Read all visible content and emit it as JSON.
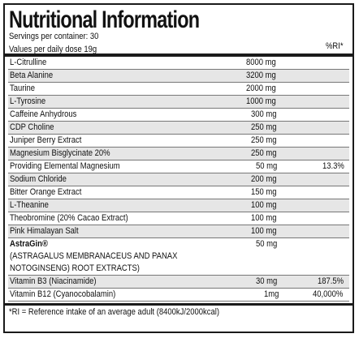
{
  "title": "Nutritional Information",
  "servings": "Servings per container: 30",
  "values_per": "Values per daily dose 19g",
  "ri_header": "%RI*",
  "rows": [
    {
      "name": "L-Citrulline",
      "amount": "8000 mg",
      "ri": ""
    },
    {
      "name": "Beta Alanine",
      "amount": "3200 mg",
      "ri": ""
    },
    {
      "name": "Taurine",
      "amount": "2000 mg",
      "ri": ""
    },
    {
      "name": "L-Tyrosine",
      "amount": "1000 mg",
      "ri": ""
    },
    {
      "name": "Caffeine Anhydrous",
      "amount": "300 mg",
      "ri": ""
    },
    {
      "name": "CDP Choline",
      "amount": "250 mg",
      "ri": ""
    },
    {
      "name": "Juniper Berry Extract",
      "amount": "250 mg",
      "ri": ""
    },
    {
      "name": "Magnesium Bisglycinate 20%",
      "amount": "250 mg",
      "ri": ""
    },
    {
      "name": "Providing Elemental Magnesium",
      "amount": "50 mg",
      "ri": "13.3%"
    },
    {
      "name": "Sodium Chloride",
      "amount": "200 mg",
      "ri": ""
    },
    {
      "name": "Bitter Orange Extract",
      "amount": "150 mg",
      "ri": ""
    },
    {
      "name": "L-Theanine",
      "amount": "100 mg",
      "ri": ""
    },
    {
      "name": "Theobromine (20% Cacao Extract)",
      "amount": "100 mg",
      "ri": ""
    },
    {
      "name": "Pink Himalayan Salt",
      "amount": "100 mg",
      "ri": ""
    }
  ],
  "astragin": {
    "name": "AstraGin®",
    "line2": "(ASTRAGALUS MEMBRANACEUS AND PANAX",
    "line3": "NOTOGINSENG) ROOT EXTRACTS)",
    "amount": "50 mg"
  },
  "vitamins": [
    {
      "name": "Vitamin B3 (Niacinamide)",
      "amount": "30 mg",
      "ri": "187.5%"
    },
    {
      "name": "Vitamin B12 (Cyanocobalamin)",
      "amount": "1mg",
      "ri": "40,000%"
    }
  ],
  "footnote": "*RI = Reference intake of an average adult (8400kJ/2000kcal)"
}
